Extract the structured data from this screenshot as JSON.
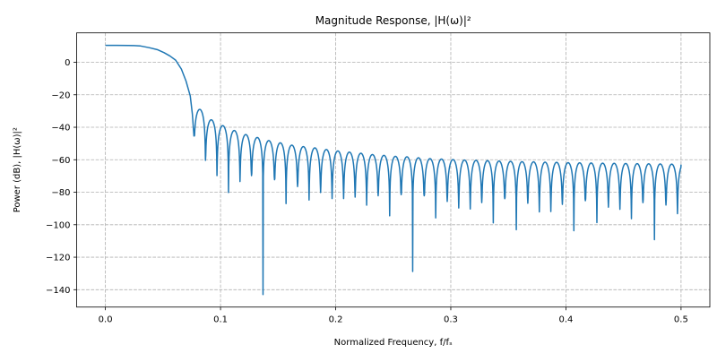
{
  "chart_data": {
    "type": "line",
    "title": "Magnitude Response, |H(ω)|²",
    "xlabel": "Normalized Frequency, f/fₛ",
    "ylabel": "Power (dB), |H(ω)|²",
    "xlim": [
      -0.025,
      0.525
    ],
    "ylim": [
      -150.7,
      18.1
    ],
    "xticks": [
      0.0,
      0.1,
      0.2,
      0.3,
      0.4,
      0.5
    ],
    "xtick_labels": [
      "0.0",
      "0.1",
      "0.2",
      "0.3",
      "0.4",
      "0.5"
    ],
    "yticks": [
      0,
      -20,
      -40,
      -60,
      -80,
      -100,
      -120,
      -140
    ],
    "ytick_labels": [
      "0",
      "−20",
      "−40",
      "−60",
      "−80",
      "−100",
      "−120",
      "−140"
    ],
    "grid": true,
    "line_color": "#1f77b4",
    "passband": [
      [
        0,
        10.4
      ],
      [
        0.01,
        10.4
      ],
      [
        0.02,
        10.35
      ],
      [
        0.025,
        10.3
      ],
      [
        0.03,
        10.1
      ],
      [
        0.038,
        9.0
      ],
      [
        0.045,
        7.8
      ],
      [
        0.051,
        5.9
      ],
      [
        0.056,
        3.9
      ],
      [
        0.061,
        1.3
      ],
      [
        0.066,
        -4.2
      ],
      [
        0.07,
        -11.5
      ],
      [
        0.0737,
        -20.7
      ],
      [
        0.0755,
        -31.7
      ],
      [
        0.0769,
        -45.4
      ]
    ],
    "sidelobe_nulls": {
      "first_x": 0.0769,
      "spacing": 0.01,
      "depths_db": [
        -45.4,
        -60.4,
        -69.8,
        -80.2,
        -73.4,
        -69.8,
        -143,
        -72.3,
        -87,
        -76.5,
        -84.8,
        -80.2,
        -83.9,
        -83.9,
        -83,
        -88,
        -82.2,
        -94.5,
        -81.5,
        -128.8,
        -82.2,
        -95.8,
        -85.7,
        -89.7,
        -90.3,
        -86.4,
        -98.9,
        -84,
        -103.1,
        -86.8,
        -92.1,
        -91.9,
        -87.5,
        -103.7,
        -85.2,
        -98.7,
        -89.2,
        -90.5,
        -96.3,
        -86.4,
        -109.2,
        -87.9,
        -93.2
      ]
    },
    "sidelobe_peaks_db": [
      -29,
      -35.4,
      -39,
      -42,
      -44.5,
      -46.3,
      -48.2,
      -49.6,
      -51,
      -51.9,
      -52.7,
      -53.7,
      -54.6,
      -55.3,
      -56,
      -56.8,
      -57.3,
      -57.9,
      -58.2,
      -58.8,
      -59.3,
      -59.6,
      -59.9,
      -60.2,
      -60.4,
      -60.6,
      -60.8,
      -61,
      -61.2,
      -61.3,
      -61.5,
      -61.6,
      -61.8,
      -61.9,
      -62,
      -62.1,
      -62.2,
      -62.3,
      -62.4,
      -62.5,
      -62.6,
      -62.7,
      -62.8
    ],
    "end_point": [
      0.5,
      -63
    ]
  }
}
